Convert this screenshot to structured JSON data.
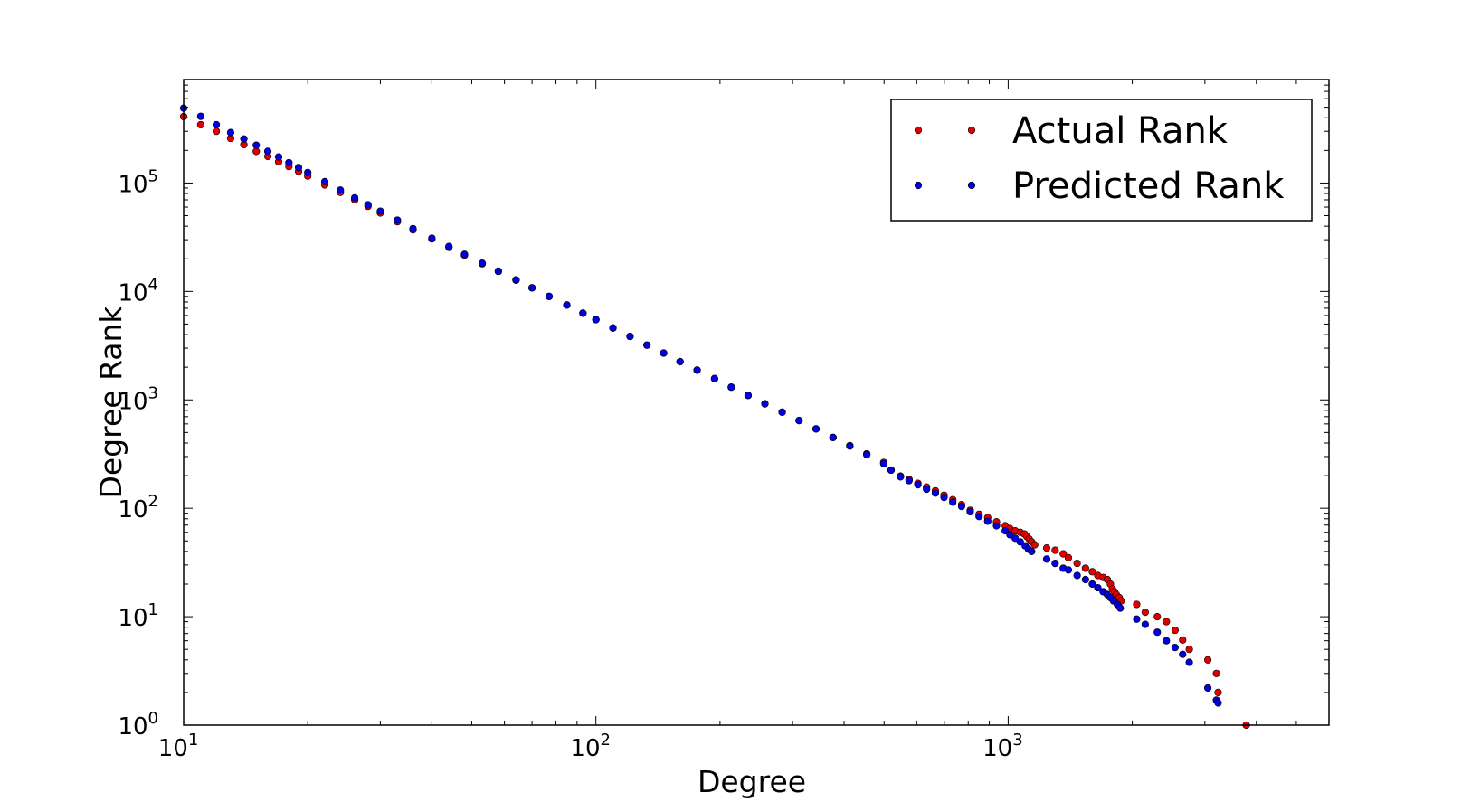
{
  "chart_data": {
    "type": "scatter",
    "title": "",
    "xlabel": "Degree",
    "ylabel": "Degree Rank",
    "xscale": "log",
    "yscale": "log",
    "xlim": [
      10,
      6000
    ],
    "ylim": [
      1,
      900000
    ],
    "grid": false,
    "legend": {
      "placement": "top-right",
      "entries": [
        "Actual Rank",
        "Predicted Rank"
      ]
    },
    "xticks": [
      {
        "value": 10,
        "base": "10",
        "exp": "1"
      },
      {
        "value": 100,
        "base": "10",
        "exp": "2"
      },
      {
        "value": 1000,
        "base": "10",
        "exp": "3"
      }
    ],
    "yticks": [
      {
        "value": 1,
        "base": "10",
        "exp": "0"
      },
      {
        "value": 10,
        "base": "10",
        "exp": "1"
      },
      {
        "value": 100,
        "base": "10",
        "exp": "2"
      },
      {
        "value": 1000,
        "base": "10",
        "exp": "3"
      },
      {
        "value": 10000,
        "base": "10",
        "exp": "4"
      },
      {
        "value": 100000,
        "base": "10",
        "exp": "5"
      }
    ],
    "series": [
      {
        "name": "Actual Rank",
        "color": "#e00000",
        "points": [
          [
            10,
            410000
          ],
          [
            11,
            345000
          ],
          [
            12,
            300000
          ],
          [
            13,
            258000
          ],
          [
            14,
            226000
          ],
          [
            15,
            196000
          ],
          [
            16,
            176000
          ],
          [
            17,
            157000
          ],
          [
            18,
            142000
          ],
          [
            19,
            128000
          ],
          [
            20,
            116000
          ],
          [
            22,
            96000
          ],
          [
            24,
            82000
          ],
          [
            26,
            70000
          ],
          [
            28,
            61000
          ],
          [
            30,
            53000
          ],
          [
            33,
            44000
          ],
          [
            36,
            37000
          ],
          [
            40,
            30500
          ],
          [
            44,
            25500
          ],
          [
            48,
            21600
          ],
          [
            53,
            18000
          ],
          [
            58,
            15300
          ],
          [
            64,
            12700
          ],
          [
            70,
            10800
          ],
          [
            77,
            9000
          ],
          [
            85,
            7500
          ],
          [
            93,
            6300
          ],
          [
            100,
            5500
          ],
          [
            110,
            4600
          ],
          [
            121,
            3850
          ],
          [
            133,
            3200
          ],
          [
            146,
            2700
          ],
          [
            160,
            2250
          ],
          [
            176,
            1880
          ],
          [
            194,
            1570
          ],
          [
            213,
            1310
          ],
          [
            234,
            1100
          ],
          [
            257,
            920
          ],
          [
            283,
            770
          ],
          [
            311,
            645
          ],
          [
            342,
            540
          ],
          [
            376,
            450
          ],
          [
            413,
            378
          ],
          [
            454,
            318
          ],
          [
            499,
            265
          ],
          [
            520,
            225
          ],
          [
            548,
            198
          ],
          [
            575,
            185
          ],
          [
            604,
            170
          ],
          [
            634,
            157
          ],
          [
            666,
            145
          ],
          [
            699,
            132
          ],
          [
            734,
            120
          ],
          [
            771,
            108
          ],
          [
            809,
            96
          ],
          [
            850,
            88
          ],
          [
            892,
            82
          ],
          [
            937,
            75
          ],
          [
            984,
            69
          ],
          [
            1010,
            65
          ],
          [
            1040,
            62
          ],
          [
            1070,
            60
          ],
          [
            1095,
            58
          ],
          [
            1110,
            55
          ],
          [
            1125,
            52
          ],
          [
            1140,
            49
          ],
          [
            1160,
            46
          ],
          [
            1240,
            43
          ],
          [
            1300,
            41
          ],
          [
            1360,
            38
          ],
          [
            1400,
            35
          ],
          [
            1470,
            31
          ],
          [
            1540,
            28
          ],
          [
            1600,
            26
          ],
          [
            1650,
            24
          ],
          [
            1700,
            23
          ],
          [
            1740,
            22
          ],
          [
            1770,
            20
          ],
          [
            1790,
            18
          ],
          [
            1810,
            17
          ],
          [
            1830,
            16
          ],
          [
            1860,
            15
          ],
          [
            1880,
            14
          ],
          [
            2050,
            13
          ],
          [
            2150,
            11
          ],
          [
            2300,
            10
          ],
          [
            2420,
            9
          ],
          [
            2540,
            7.5
          ],
          [
            2650,
            6.1
          ],
          [
            2750,
            5
          ],
          [
            3050,
            4
          ],
          [
            3200,
            3
          ],
          [
            3230,
            2
          ],
          [
            3780,
            1
          ]
        ]
      },
      {
        "name": "Predicted Rank",
        "color": "#0000e0",
        "points": [
          [
            10,
            490000
          ],
          [
            11,
            412000
          ],
          [
            12,
            345000
          ],
          [
            13,
            292000
          ],
          [
            14,
            255000
          ],
          [
            15,
            223000
          ],
          [
            16,
            196000
          ],
          [
            17,
            174000
          ],
          [
            18,
            154000
          ],
          [
            19,
            139000
          ],
          [
            20,
            125000
          ],
          [
            22,
            103000
          ],
          [
            24,
            86000
          ],
          [
            26,
            73000
          ],
          [
            28,
            63000
          ],
          [
            30,
            55000
          ],
          [
            33,
            45500
          ],
          [
            36,
            38000
          ],
          [
            40,
            31000
          ],
          [
            44,
            26000
          ],
          [
            48,
            22000
          ],
          [
            53,
            18200
          ],
          [
            58,
            15400
          ],
          [
            64,
            12800
          ],
          [
            70,
            10800
          ],
          [
            77,
            9000
          ],
          [
            85,
            7500
          ],
          [
            93,
            6300
          ],
          [
            100,
            5500
          ],
          [
            110,
            4600
          ],
          [
            121,
            3850
          ],
          [
            133,
            3200
          ],
          [
            146,
            2700
          ],
          [
            160,
            2250
          ],
          [
            176,
            1880
          ],
          [
            194,
            1570
          ],
          [
            213,
            1310
          ],
          [
            234,
            1100
          ],
          [
            257,
            920
          ],
          [
            283,
            770
          ],
          [
            311,
            645
          ],
          [
            342,
            540
          ],
          [
            376,
            450
          ],
          [
            413,
            375
          ],
          [
            454,
            312
          ],
          [
            499,
            258
          ],
          [
            520,
            225
          ],
          [
            548,
            195
          ],
          [
            575,
            180
          ],
          [
            604,
            165
          ],
          [
            634,
            150
          ],
          [
            666,
            138
          ],
          [
            699,
            126
          ],
          [
            734,
            114
          ],
          [
            771,
            104
          ],
          [
            809,
            93
          ],
          [
            850,
            84
          ],
          [
            892,
            76
          ],
          [
            937,
            69
          ],
          [
            984,
            62
          ],
          [
            1010,
            57
          ],
          [
            1040,
            53
          ],
          [
            1070,
            49
          ],
          [
            1100,
            45
          ],
          [
            1120,
            42
          ],
          [
            1140,
            40
          ],
          [
            1240,
            34
          ],
          [
            1300,
            31
          ],
          [
            1360,
            28
          ],
          [
            1400,
            27
          ],
          [
            1470,
            24
          ],
          [
            1540,
            22
          ],
          [
            1600,
            20
          ],
          [
            1650,
            18.5
          ],
          [
            1700,
            17
          ],
          [
            1740,
            16
          ],
          [
            1770,
            15
          ],
          [
            1800,
            14
          ],
          [
            1840,
            13
          ],
          [
            1870,
            12
          ],
          [
            2050,
            9.5
          ],
          [
            2150,
            8.5
          ],
          [
            2300,
            7.2
          ],
          [
            2420,
            6
          ],
          [
            2540,
            5.2
          ],
          [
            2650,
            4.5
          ],
          [
            2750,
            3.8
          ],
          [
            3050,
            2.2
          ],
          [
            3200,
            1.7
          ],
          [
            3230,
            1.6
          ]
        ]
      }
    ]
  }
}
